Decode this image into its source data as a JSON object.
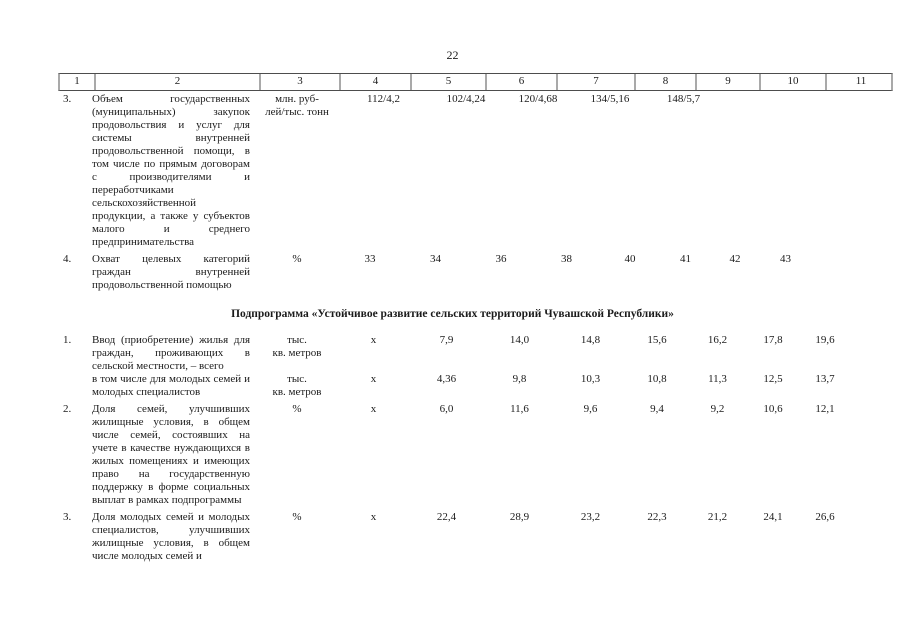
{
  "page": {
    "number": "22"
  },
  "table": {
    "header_columns": [
      "1",
      "2",
      "3",
      "4",
      "5",
      "6",
      "7",
      "8",
      "9",
      "10",
      "11"
    ],
    "section1_rows": [
      {
        "num": "3.",
        "name": "Объем государственных (муниципальных) закупок продовольствия и услуг для системы внутренней продовольственной помощи, в том числе по прямым договорам с производителями и переработчиками сельскохозяйственной продукции, а также у субъектов малого и среднего предпринимательства",
        "unit": "млн. руб-\nлей/тыс. тонн",
        "values": [
          "112/4,2",
          "102/4,24",
          "120/4,68",
          "134/5,16",
          "148/5,7",
          "",
          "",
          ""
        ]
      },
      {
        "num": "4.",
        "name": "Охват целевых категорий граждан внутренней продовольственной помощью",
        "unit": "%",
        "values": [
          "33",
          "34",
          "36",
          "38",
          "40",
          "41",
          "42",
          "43"
        ]
      }
    ],
    "subprogram_title": "Подпрограмма «Устойчивое развитие сельских территорий Чувашской Республики»",
    "subprogram_rows": [
      {
        "num": "1.",
        "name": "Ввод (приобретение) жилья для граждан, проживающих в сельской местности, – всего",
        "unit": "тыс.\nкв. метров",
        "values": [
          "х",
          "7,9",
          "14,0",
          "14,8",
          "15,6",
          "16,2",
          "17,8",
          "19,6"
        ],
        "continuation": false
      },
      {
        "num": "",
        "name": "в том числе для молодых семей и молодых специалистов",
        "unit": "тыс.\nкв. метров",
        "values": [
          "х",
          "4,36",
          "9,8",
          "10,3",
          "10,8",
          "11,3",
          "12,5",
          "13,7"
        ],
        "continuation": true
      },
      {
        "num": "2.",
        "name": "Доля семей, улучшивших жилищные условия, в общем числе семей, состоявших на учете в качестве нуждающихся в жилых помещениях и имеющих право на государственную поддержку в форме социальных выплат в рамках подпрограммы",
        "unit": "%",
        "values": [
          "х",
          "6,0",
          "11,6",
          "9,6",
          "9,4",
          "9,2",
          "10,6",
          "12,1"
        ],
        "continuation": false
      },
      {
        "num": "3.",
        "name": "Доля молодых семей и молодых специалистов, улучшивших жилищные условия, в общем числе молодых семей и",
        "unit": "%",
        "values": [
          "х",
          "22,4",
          "28,9",
          "23,2",
          "22,3",
          "21,2",
          "24,1",
          "26,6"
        ],
        "continuation": false
      }
    ]
  }
}
